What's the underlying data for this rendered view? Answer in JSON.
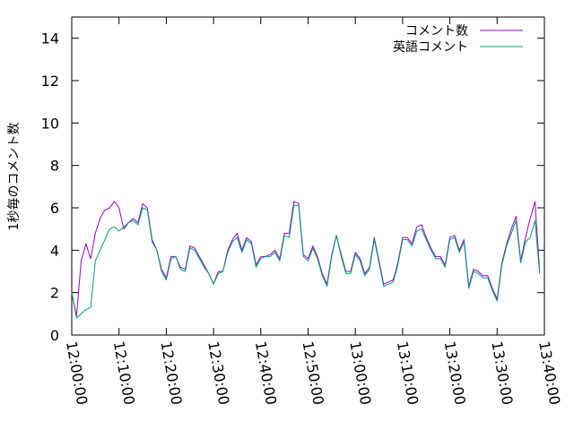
{
  "chart_data": {
    "type": "line",
    "ylabel": "1秒毎のコメント数",
    "xlabel": "",
    "title": "",
    "xlim": [
      "12:00:00",
      "13:40:00"
    ],
    "ylim": [
      0,
      15
    ],
    "x_ticks": [
      "12:00:00",
      "12:10:00",
      "12:20:00",
      "12:30:00",
      "12:40:00",
      "12:50:00",
      "13:00:00",
      "13:10:00",
      "13:20:00",
      "13:30:00",
      "13:40:00"
    ],
    "y_ticks": [
      0,
      2,
      4,
      6,
      8,
      10,
      12,
      14
    ],
    "grid": false,
    "legend_position": "top-right",
    "x": [
      "12:00:00",
      "12:01:00",
      "12:02:00",
      "12:03:00",
      "12:04:00",
      "12:05:00",
      "12:06:00",
      "12:07:00",
      "12:08:00",
      "12:09:00",
      "12:10:00",
      "12:11:00",
      "12:12:00",
      "12:13:00",
      "12:14:00",
      "12:15:00",
      "12:16:00",
      "12:17:00",
      "12:18:00",
      "12:19:00",
      "12:20:00",
      "12:21:00",
      "12:22:00",
      "12:23:00",
      "12:24:00",
      "12:25:00",
      "12:26:00",
      "12:27:00",
      "12:28:00",
      "12:29:00",
      "12:30:00",
      "12:31:00",
      "12:32:00",
      "12:33:00",
      "12:34:00",
      "12:35:00",
      "12:36:00",
      "12:37:00",
      "12:38:00",
      "12:39:00",
      "12:40:00",
      "12:41:00",
      "12:42:00",
      "12:43:00",
      "12:44:00",
      "12:45:00",
      "12:46:00",
      "12:47:00",
      "12:48:00",
      "12:49:00",
      "12:50:00",
      "12:51:00",
      "12:52:00",
      "12:53:00",
      "12:54:00",
      "12:55:00",
      "12:56:00",
      "12:57:00",
      "12:58:00",
      "12:59:00",
      "13:00:00",
      "13:01:00",
      "13:02:00",
      "13:03:00",
      "13:04:00",
      "13:05:00",
      "13:06:00",
      "13:07:00",
      "13:08:00",
      "13:09:00",
      "13:10:00",
      "13:11:00",
      "13:12:00",
      "13:13:00",
      "13:14:00",
      "13:15:00",
      "13:16:00",
      "13:17:00",
      "13:18:00",
      "13:19:00",
      "13:20:00",
      "13:21:00",
      "13:22:00",
      "13:23:00",
      "13:24:00",
      "13:25:00",
      "13:26:00",
      "13:27:00",
      "13:28:00",
      "13:29:00",
      "13:30:00",
      "13:31:00",
      "13:32:00",
      "13:33:00",
      "13:34:00",
      "13:35:00",
      "13:36:00",
      "13:37:00",
      "13:38:00",
      "13:39:00"
    ],
    "series": [
      {
        "name": "コメント数",
        "color": "#9400d3",
        "values": [
          2.0,
          0.9,
          3.5,
          4.3,
          3.6,
          4.8,
          5.5,
          5.9,
          6.0,
          6.3,
          6.0,
          5.0,
          5.3,
          5.5,
          5.3,
          6.2,
          6.0,
          4.5,
          4.0,
          3.1,
          2.7,
          3.7,
          3.7,
          3.2,
          3.1,
          4.2,
          4.1,
          3.7,
          3.3,
          2.9,
          2.4,
          3.0,
          3.0,
          4.0,
          4.5,
          4.8,
          4.0,
          4.6,
          4.4,
          3.3,
          3.7,
          3.7,
          3.8,
          4.0,
          3.6,
          4.8,
          4.8,
          6.3,
          6.2,
          3.8,
          3.6,
          4.2,
          3.7,
          2.9,
          2.4,
          3.8,
          4.7,
          3.8,
          3.0,
          3.0,
          3.9,
          3.6,
          2.9,
          3.2,
          4.6,
          3.5,
          2.4,
          2.5,
          2.6,
          3.4,
          4.6,
          4.6,
          4.3,
          5.1,
          5.2,
          4.6,
          4.1,
          3.7,
          3.7,
          3.3,
          4.6,
          4.7,
          4.0,
          4.5,
          2.3,
          3.1,
          3.0,
          2.8,
          2.8,
          2.2,
          1.7,
          3.4,
          4.3,
          5.0,
          5.6,
          3.5,
          4.6,
          5.5,
          6.3,
          3.0
        ]
      },
      {
        "name": "英語コメント",
        "color": "#009e73",
        "values": [
          2.0,
          0.8,
          1.0,
          1.2,
          1.3,
          3.5,
          4.0,
          4.5,
          5.0,
          5.1,
          4.9,
          5.1,
          5.3,
          5.4,
          5.2,
          6.0,
          5.9,
          4.4,
          4.0,
          3.0,
          2.6,
          3.6,
          3.7,
          3.1,
          3.0,
          4.1,
          4.0,
          3.6,
          3.2,
          2.9,
          2.4,
          2.9,
          3.0,
          3.9,
          4.4,
          4.6,
          3.9,
          4.5,
          4.3,
          3.2,
          3.6,
          3.7,
          3.7,
          3.9,
          3.5,
          4.7,
          4.6,
          6.1,
          6.1,
          3.7,
          3.5,
          4.1,
          3.6,
          2.8,
          2.3,
          3.7,
          4.7,
          3.7,
          2.9,
          2.9,
          3.8,
          3.5,
          2.8,
          3.1,
          4.5,
          3.4,
          2.3,
          2.4,
          2.5,
          3.3,
          4.5,
          4.5,
          4.2,
          4.9,
          5.0,
          4.5,
          4.0,
          3.6,
          3.6,
          3.2,
          4.5,
          4.6,
          3.9,
          4.4,
          2.2,
          3.0,
          2.9,
          2.7,
          2.7,
          2.1,
          1.6,
          3.3,
          4.2,
          4.8,
          5.4,
          3.4,
          4.4,
          4.6,
          5.4,
          2.9
        ]
      }
    ]
  }
}
